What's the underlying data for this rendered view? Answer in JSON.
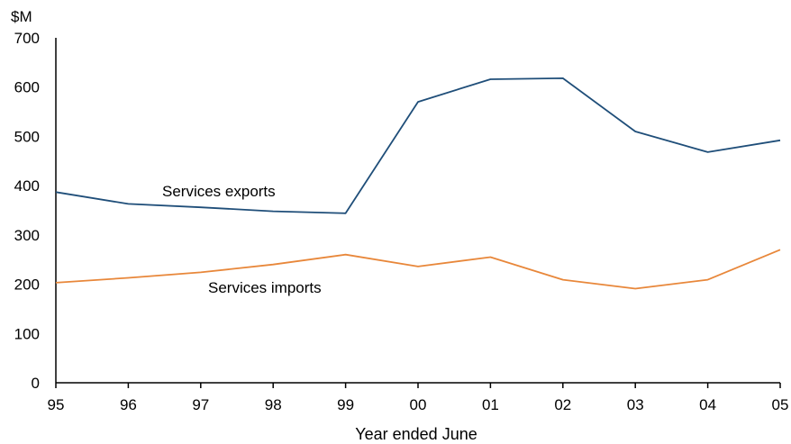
{
  "chart_data": {
    "type": "line",
    "unit_label": "$M",
    "xlabel": "Year ended June",
    "ylabel": "",
    "categories": [
      "95",
      "96",
      "97",
      "98",
      "99",
      "00",
      "01",
      "02",
      "03",
      "04",
      "05"
    ],
    "y_ticks": [
      "0",
      "100",
      "200",
      "300",
      "400",
      "500",
      "600",
      "700"
    ],
    "ylim": [
      0,
      700
    ],
    "grid": false,
    "legend": "inline labels",
    "series": [
      {
        "name": "Services exports",
        "color": "#1f4e79",
        "values": [
          387,
          363,
          356,
          348,
          344,
          570,
          616,
          618,
          510,
          468,
          492
        ]
      },
      {
        "name": "Services imports",
        "color": "#e8873a",
        "values": [
          203,
          213,
          224,
          240,
          260,
          236,
          255,
          209,
          191,
          209,
          270
        ]
      }
    ]
  }
}
